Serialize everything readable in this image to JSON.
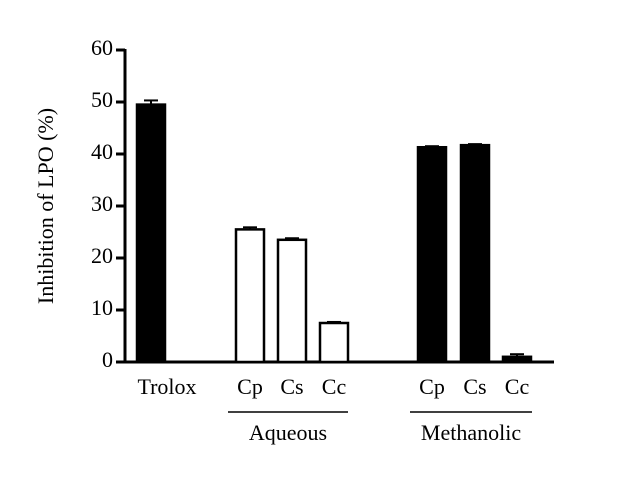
{
  "chart_data": {
    "type": "bar",
    "y_label": "Inhibition of LPO (%)",
    "categories": [
      "Trolox",
      "Cp",
      "Cs",
      "Cc",
      "Cp",
      "Cs",
      "Cc"
    ],
    "values": [
      49.5,
      25.5,
      23.5,
      7.5,
      41.3,
      41.7,
      1.0
    ],
    "errors": [
      0.8,
      0.4,
      0.3,
      0.2,
      0.2,
      0.2,
      0.5
    ],
    "colors": [
      "#000000",
      "#ffffff",
      "#ffffff",
      "#ffffff",
      "#000000",
      "#000000",
      "#000000"
    ],
    "group_labels": [
      "Aqueous",
      "Methanolic"
    ],
    "ylim": [
      0,
      60
    ],
    "yticks": [
      0,
      10,
      20,
      30,
      40,
      50,
      60
    ]
  }
}
